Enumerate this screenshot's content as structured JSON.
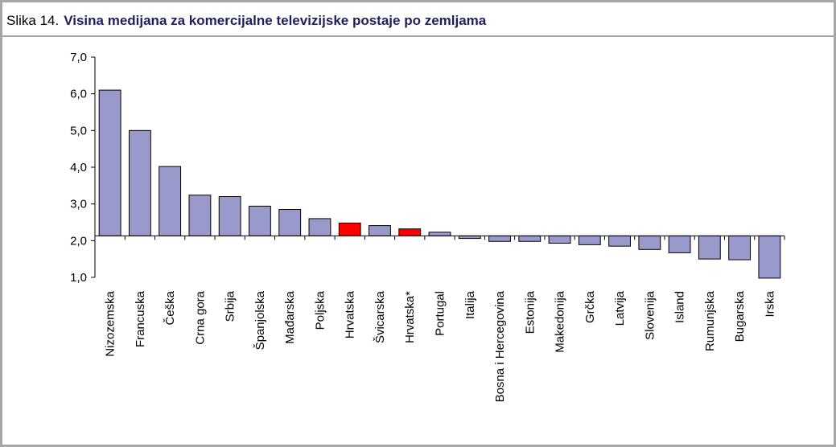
{
  "chart_data": {
    "type": "bar",
    "figure_label": "Slika 14.",
    "title": "Visina medijana za komercijalne televizijske postaje po zemljama",
    "categories": [
      "Nizozemska",
      "Francuska",
      "Češka",
      "Crna gora",
      "Srbija",
      "Španjolska",
      "Mađarska",
      "Poljska",
      "Hrvatska",
      "Švicarska",
      "Hrvatska*",
      "Portugal",
      "Italija",
      "Bosna i Hercegovina",
      "Estonija",
      "Makedonija",
      "Grčka",
      "Latvija",
      "Slovenija",
      "Island",
      "Rumunjska",
      "Bugarska",
      "Irska"
    ],
    "values": [
      6.1,
      5.0,
      4.02,
      3.24,
      3.2,
      2.94,
      2.85,
      2.6,
      2.48,
      2.41,
      2.32,
      2.23,
      2.06,
      1.98,
      1.98,
      1.93,
      1.89,
      1.85,
      1.76,
      1.67,
      1.5,
      1.48,
      0.98
    ],
    "colors": [
      "#9999cc",
      "#9999cc",
      "#9999cc",
      "#9999cc",
      "#9999cc",
      "#9999cc",
      "#9999cc",
      "#9999cc",
      "#ff0000",
      "#9999cc",
      "#ff0000",
      "#9999cc",
      "#9999cc",
      "#9999cc",
      "#9999cc",
      "#9999cc",
      "#9999cc",
      "#9999cc",
      "#9999cc",
      "#9999cc",
      "#9999cc",
      "#9999cc",
      "#9999cc"
    ],
    "x_axis_crosses": 2.13,
    "ylim": [
      1.0,
      7.0
    ],
    "yticks": [
      {
        "value": 1,
        "label": "1,0"
      },
      {
        "value": 2,
        "label": "2,0"
      },
      {
        "value": 3,
        "label": "3,0"
      },
      {
        "value": 4,
        "label": "4,0"
      },
      {
        "value": 5,
        "label": "5,0"
      },
      {
        "value": 6,
        "label": "6,0"
      },
      {
        "value": 7,
        "label": "7,0"
      }
    ],
    "grid": false
  }
}
